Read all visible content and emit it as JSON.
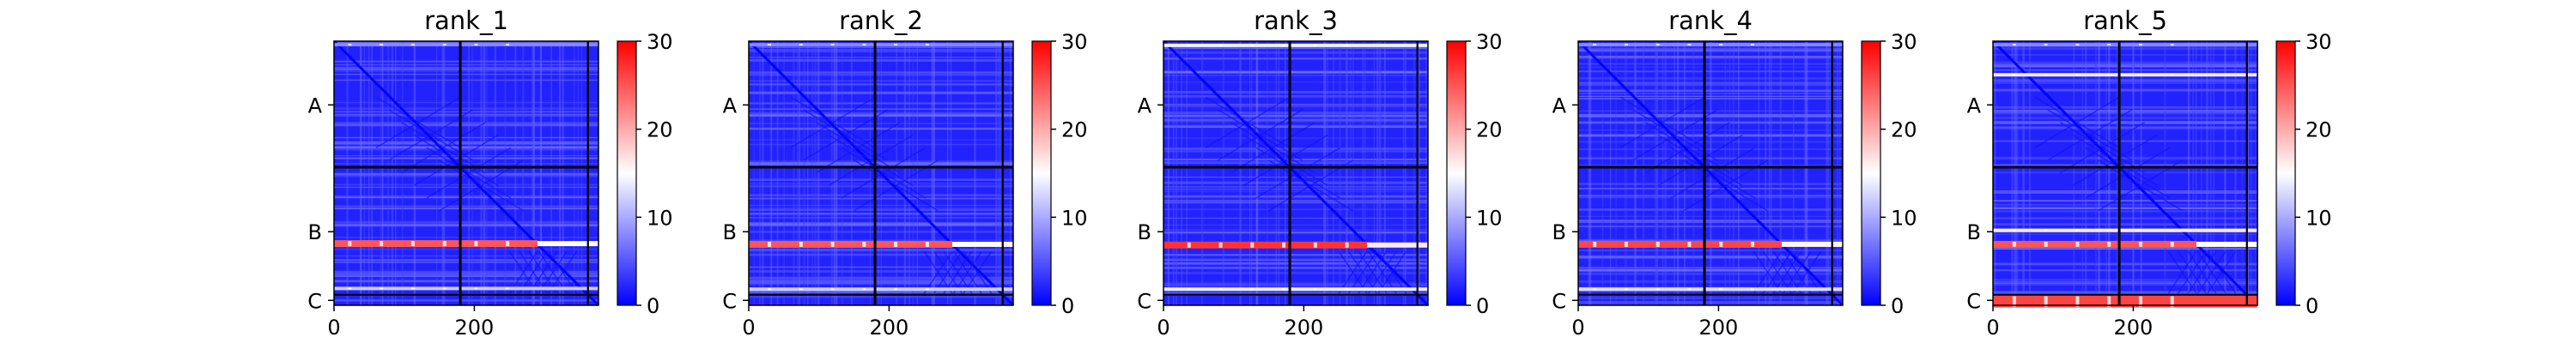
{
  "figure": {
    "colormap": {
      "low": "#0000ff",
      "mid": "#ffffff",
      "high": "#ff0000"
    },
    "colorbar_ticks": [
      "0",
      "10",
      "20",
      "30"
    ],
    "colorbar_values": [
      0,
      10,
      20,
      30
    ]
  },
  "chart_data": [
    {
      "type": "heatmap",
      "title": "rank_1",
      "x_ticks": [
        0,
        200
      ],
      "x_tick_labels": [
        "0",
        "200"
      ],
      "xlim": [
        0,
        377
      ],
      "ylim": [
        377,
        0
      ],
      "y_category_labels": [
        "A",
        "B",
        "C"
      ],
      "y_category_centers": [
        91,
        272,
        370
      ],
      "chain_boundaries": [
        180,
        362
      ],
      "vmin": 0,
      "vmax": 30,
      "bright_rows": [
        {
          "y": 289,
          "value": 25
        },
        {
          "y": 353,
          "value": 12
        },
        {
          "y": 5,
          "value": 8
        }
      ]
    },
    {
      "type": "heatmap",
      "title": "rank_2",
      "x_ticks": [
        0,
        200
      ],
      "x_tick_labels": [
        "0",
        "200"
      ],
      "xlim": [
        0,
        377
      ],
      "ylim": [
        377,
        0
      ],
      "y_category_labels": [
        "A",
        "B",
        "C"
      ],
      "y_category_centers": [
        91,
        272,
        370
      ],
      "chain_boundaries": [
        180,
        362
      ],
      "vmin": 0,
      "vmax": 30,
      "bright_rows": [
        {
          "y": 290,
          "value": 25
        },
        {
          "y": 354,
          "value": 12
        },
        {
          "y": 5,
          "value": 8
        }
      ]
    },
    {
      "type": "heatmap",
      "title": "rank_3",
      "x_ticks": [
        0,
        200
      ],
      "x_tick_labels": [
        "0",
        "200"
      ],
      "xlim": [
        0,
        377
      ],
      "ylim": [
        377,
        0
      ],
      "y_category_labels": [
        "A",
        "B",
        "C"
      ],
      "y_category_centers": [
        91,
        272,
        370
      ],
      "chain_boundaries": [
        180,
        362
      ],
      "vmin": 0,
      "vmax": 30,
      "bright_rows": [
        {
          "y": 291,
          "value": 27
        },
        {
          "y": 354,
          "value": 14
        },
        {
          "y": 6,
          "value": 14
        }
      ]
    },
    {
      "type": "heatmap",
      "title": "rank_4",
      "x_ticks": [
        0,
        200
      ],
      "x_tick_labels": [
        "0",
        "200"
      ],
      "xlim": [
        0,
        377
      ],
      "ylim": [
        377,
        0
      ],
      "y_category_labels": [
        "A",
        "B",
        "C"
      ],
      "y_category_centers": [
        91,
        272,
        370
      ],
      "chain_boundaries": [
        180,
        362
      ],
      "vmin": 0,
      "vmax": 30,
      "bright_rows": [
        {
          "y": 290,
          "value": 26
        },
        {
          "y": 354,
          "value": 13
        },
        {
          "y": 5,
          "value": 8
        }
      ]
    },
    {
      "type": "heatmap",
      "title": "rank_5",
      "x_ticks": [
        0,
        200
      ],
      "x_tick_labels": [
        "0",
        "200"
      ],
      "xlim": [
        0,
        377
      ],
      "ylim": [
        377,
        0
      ],
      "y_category_labels": [
        "A",
        "B",
        "C"
      ],
      "y_category_centers": [
        91,
        272,
        370
      ],
      "chain_boundaries": [
        180,
        362
      ],
      "vmin": 0,
      "vmax": 30,
      "bright_rows": [
        {
          "y": 290,
          "value": 25
        },
        {
          "y": 270,
          "value": 16
        },
        {
          "y": 48,
          "value": 14
        },
        {
          "y": 372,
          "value": 26
        },
        {
          "y": 5,
          "value": 8
        }
      ]
    }
  ]
}
